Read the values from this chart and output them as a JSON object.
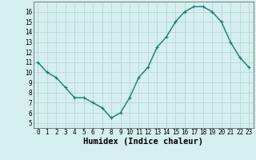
{
  "x": [
    0,
    1,
    2,
    3,
    4,
    5,
    6,
    7,
    8,
    9,
    10,
    11,
    12,
    13,
    14,
    15,
    16,
    17,
    18,
    19,
    20,
    21,
    22,
    23
  ],
  "y": [
    11,
    10,
    9.5,
    8.5,
    7.5,
    7.5,
    7.0,
    6.5,
    5.5,
    6.0,
    7.5,
    9.5,
    10.5,
    12.5,
    13.5,
    15.0,
    16.0,
    16.5,
    16.5,
    16.0,
    15.0,
    13.0,
    11.5,
    10.5
  ],
  "xlabel": "Humidex (Indice chaleur)",
  "line_color": "#1a7a6e",
  "marker": "+",
  "bg_color": "#d4efed",
  "grid_minor_color": "#c2e0de",
  "grid_major_color": "#b8d8d6",
  "xlim": [
    -0.5,
    23.5
  ],
  "ylim": [
    4.5,
    17.0
  ],
  "xticks": [
    0,
    1,
    2,
    3,
    4,
    5,
    6,
    7,
    8,
    9,
    10,
    11,
    12,
    13,
    14,
    15,
    16,
    17,
    18,
    19,
    20,
    21,
    22,
    23
  ],
  "yticks": [
    5,
    6,
    7,
    8,
    9,
    10,
    11,
    12,
    13,
    14,
    15,
    16
  ],
  "tick_fontsize": 5.5,
  "xlabel_fontsize": 7.5,
  "marker_size": 3.5,
  "linewidth": 1.0
}
